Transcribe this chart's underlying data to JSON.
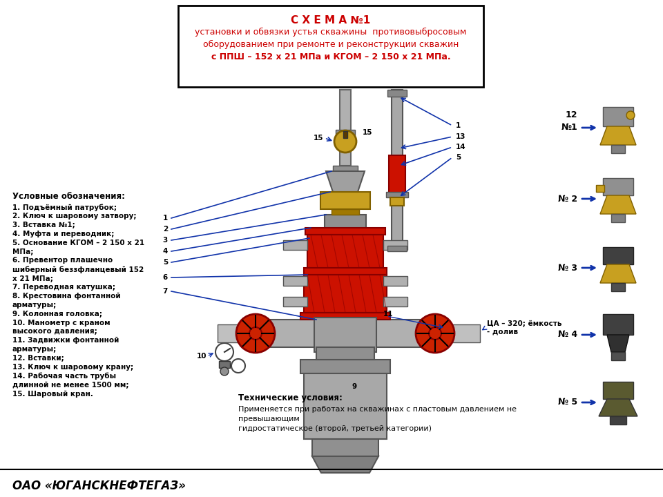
{
  "title_line1": "С Х Е М А №1",
  "title_line2": "установки и обвязки устья скважины  противовыбросовым",
  "title_line3": "оборудованием при ремонте и реконструкции скважин",
  "title_line4": "с ППШ – 152 х 21 МПа и КГОМ – 2 150 х 21 МПа.",
  "title_color": "#cc0000",
  "legend_title": "Условные обозначения:",
  "legend_text": "1. Подъёмный патрубок;\n2. Ключ к шаровому затвору;\n3. Вставка №1;\n4. Муфта и переводник;\n5. Основание КГОМ – 2 150 х 21\nМПа;\n6. Превентор плашечно\nшиберный беззфланцевый 152\nх 21 МПа;\n7. Переводная катушка;\n8. Крестовина фонтанной\nарматуры;\n9. Колонная головка;\n10. Манометр с краном\nвысокого давления;\n11. Задвижки фонтанной\nарматуры;\n12. Вставки;\n13. Ключ к шаровому крану;\n14. Рабочая часть трубы\nдлинной не менее 1500 мм;\n15. Шаровый кран.",
  "tech_title": "Технические условия:",
  "tech_text": "Применяется при работах на скважинах с пластовым давлением не\nпревышающим\nгидростатическое (второй, третьей категории)",
  "company": "ОАО «ЮГАНСКНЕФТЕГАЗ»",
  "ца_label": "ЦА – 320; ёмкость\n- долив",
  "bg_color": "#ffffff"
}
